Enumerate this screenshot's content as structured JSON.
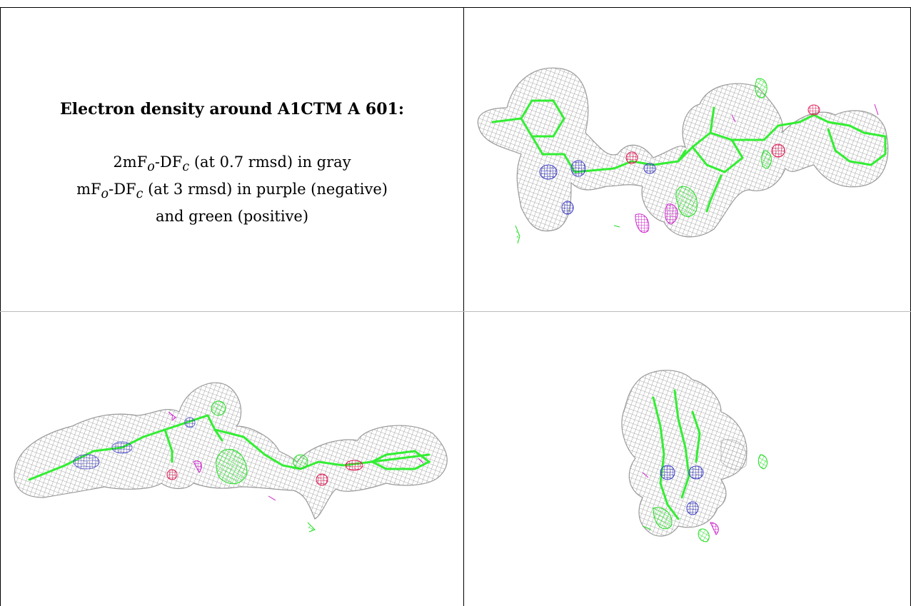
{
  "title": "Electron density around A1CTM A 601:",
  "legend": {
    "line1_pre": "2mF",
    "line1_sub1": "o",
    "line1_mid": "-DF",
    "line1_sub2": "c",
    "line1_post": " (at 0.7 rmsd) in gray",
    "line2_pre": "mF",
    "line2_sub1": "o",
    "line2_mid": "-DF",
    "line2_sub2": "c",
    "line2_post": " (at 3 rmsd) in purple (negative)",
    "line3": "and green (positive)"
  },
  "colors": {
    "mesh_gray": "#9a9a9a",
    "carbon_green": "#33ee33",
    "nitrogen_blue": "#4040c8",
    "oxygen_red": "#e0205a",
    "negative_purple": "#cc22cc",
    "positive_green": "#22dd22"
  },
  "panels": [
    "top-right view",
    "bottom-left view",
    "bottom-right view"
  ]
}
